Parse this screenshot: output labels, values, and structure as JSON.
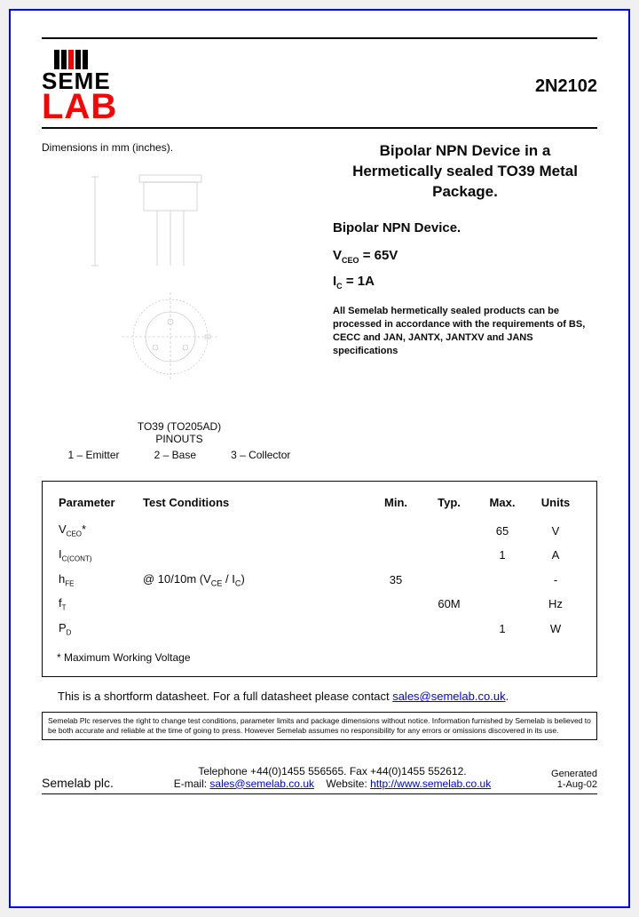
{
  "logo": {
    "line1": "SEME",
    "line2": "LAB"
  },
  "part_number": "2N2102",
  "dimensions_caption": "Dimensions in mm (inches).",
  "pinouts": {
    "title_line1": "TO39 (TO205AD)",
    "title_line2": "PINOUTS",
    "pins": [
      "1 – Emitter",
      "2 – Base",
      "3 – Collector"
    ]
  },
  "description": {
    "title": "Bipolar NPN Device in a Hermetically sealed TO39 Metal Package.",
    "device_line": "Bipolar NPN Device.",
    "vceo_label": "V",
    "vceo_sub": "CEO",
    "vceo_value": " =  65V",
    "ic_label": "I",
    "ic_sub": "C",
    "ic_value": " = 1A",
    "compliance": "All Semelab hermetically sealed products can be processed in accordance with the requirements of BS, CECC and JAN, JANTX, JANTXV and JANS specifications"
  },
  "table": {
    "headers": [
      "Parameter",
      "Test Conditions",
      "Min.",
      "Typ.",
      "Max.",
      "Units"
    ],
    "rows": [
      {
        "param_html": "V<sub>CEO</sub>*",
        "cond": "",
        "min": "",
        "typ": "",
        "max": "65",
        "units": "V"
      },
      {
        "param_html": "I<sub>C(CONT)</sub>",
        "cond": "",
        "min": "",
        "typ": "",
        "max": "1",
        "units": "A"
      },
      {
        "param_html": "h<sub>FE</sub>",
        "cond": "@ 10/10m (V<sub>CE</sub> / I<sub>C</sub>)",
        "min": "35",
        "typ": "",
        "max": "",
        "units": "-"
      },
      {
        "param_html": "f<sub>T</sub>",
        "cond": "",
        "min": "",
        "typ": "60M",
        "max": "",
        "units": "Hz"
      },
      {
        "param_html": "P<sub>D</sub>",
        "cond": "",
        "min": "",
        "typ": "",
        "max": "1",
        "units": "W"
      }
    ],
    "footnote": "* Maximum Working Voltage"
  },
  "shortform": {
    "text_before": "This is a shortform datasheet. For a full datasheet please contact ",
    "link_text": "sales@semelab.co.uk",
    "text_after": "."
  },
  "disclaimer": "Semelab Plc reserves the right to change test conditions, parameter limits and package dimensions without notice. Information furnished by Semelab is believed to be both accurate and reliable at the time of going to press. However Semelab assumes no responsibility for any errors or omissions discovered in its use.",
  "footer": {
    "company": "Semelab plc.",
    "phone_line": "Telephone +44(0)1455 556565. Fax +44(0)1455 552612.",
    "email_label": "E-mail: ",
    "email_link": "sales@semelab.co.uk",
    "website_label": "    Website: ",
    "website_link": "http://www.semelab.co.uk",
    "generated_label": "Generated",
    "generated_date": "1-Aug-02"
  }
}
